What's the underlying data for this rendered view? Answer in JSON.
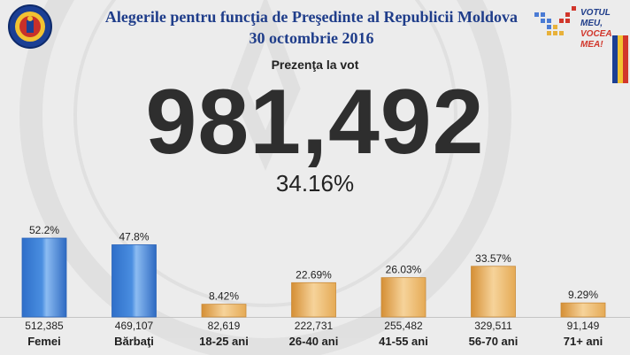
{
  "header": {
    "title_line1": "Alegerile pentru funcţia de Preşedinte al Republicii Moldova",
    "title_line2": "30 octombrie 2016"
  },
  "brand": {
    "line1": "VOTUL MEU,",
    "line2": "VOCEA MEA!"
  },
  "turnout": {
    "label": "Prezenţa la vot",
    "total": "981,492",
    "percent": "34.16%"
  },
  "colors": {
    "gender_bar": "#4a8ee0",
    "age_bar": "#e5aa55",
    "title": "#1f3d8a"
  },
  "icons": [
    "cec-seal-icon",
    "votul-meu-logo-icon",
    "flag-icon"
  ],
  "chart_data": {
    "type": "bar",
    "categories": [
      "Femei",
      "Bărbaţi",
      "18-25 ani",
      "26-40 ani",
      "41-55 ani",
      "56-70 ani",
      "71+ ani"
    ],
    "values": [
      52.2,
      47.8,
      8.42,
      22.69,
      26.03,
      33.57,
      9.29
    ],
    "value_labels": [
      "52.2%",
      "47.8%",
      "8.42%",
      "22.69%",
      "26.03%",
      "33.57%",
      "9.29%"
    ],
    "counts": [
      "512,385",
      "469,107",
      "82,619",
      "222,731",
      "255,482",
      "329,511",
      "91,149"
    ],
    "groups": [
      "gender",
      "gender",
      "age",
      "age",
      "age",
      "age",
      "age"
    ],
    "ylim": [
      0,
      52.2
    ],
    "grid": false
  }
}
